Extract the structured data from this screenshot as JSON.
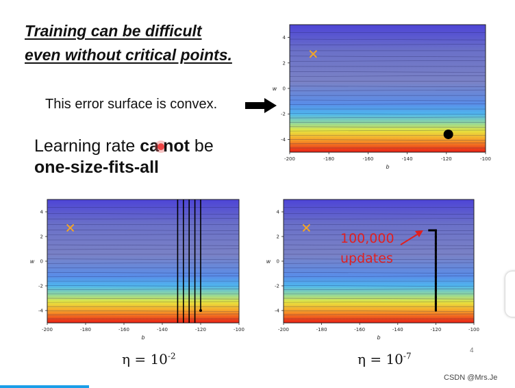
{
  "slide": {
    "title_line1": "Training can be difficult",
    "title_line2": "even without critical points.",
    "convex_text": "This error surface is convex.",
    "lr_part1": "Learning rate ",
    "lr_bold1": "ca",
    "lr_bold2": "not",
    "lr_part2": " be",
    "lr_line2": "one-size-fits-all",
    "eta_left_base": "η = 10",
    "eta_left_exp": "-2",
    "eta_right_base": "η = 10",
    "eta_right_exp": "-7",
    "page_number": "4",
    "annotation_count": "100,000",
    "annotation_word": "updates"
  },
  "watermark": "CSDN @Mrs.Je",
  "colors": {
    "marker": "#f5a623",
    "annotation": "#e02020",
    "accent_bar": "#1b9ee8"
  },
  "chart_data": [
    {
      "type": "heatmap",
      "id": "top",
      "xlabel": "b",
      "ylabel": "w",
      "xlim": [
        -200,
        -100
      ],
      "ylim": [
        -5,
        5
      ],
      "xticks": [
        "-200",
        "-180",
        "-160",
        "-140",
        "-120",
        "-100"
      ],
      "yticks": [
        "4",
        "2",
        "0",
        "-2",
        "-4"
      ],
      "start_marker": {
        "x": -188,
        "y": 2.7,
        "symbol": "x"
      },
      "minimum": {
        "x": -119,
        "y": -3.6
      }
    },
    {
      "type": "heatmap",
      "id": "bottom_left",
      "xlabel": "b",
      "ylabel": "w",
      "xlim": [
        -200,
        -100
      ],
      "ylim": [
        -5,
        5
      ],
      "xticks": [
        "-200",
        "-180",
        "-160",
        "-140",
        "-120",
        "-100"
      ],
      "yticks": [
        "4",
        "2",
        "0",
        "-2",
        "-4"
      ],
      "start_marker": {
        "x": -188,
        "y": 2.7,
        "symbol": "x"
      },
      "oscillation_b": [
        -132,
        -129,
        -126,
        -123,
        -120
      ],
      "path_end": {
        "x": -120,
        "y": -4
      }
    },
    {
      "type": "heatmap",
      "id": "bottom_right",
      "xlabel": "b",
      "ylabel": "w",
      "xlim": [
        -200,
        -100
      ],
      "ylim": [
        -5,
        5
      ],
      "xticks": [
        "-200",
        "-180",
        "-160",
        "-140",
        "-120",
        "-100"
      ],
      "yticks": [
        "4",
        "2",
        "0",
        "-2",
        "-4"
      ],
      "start_marker": {
        "x": -188,
        "y": 2.7,
        "symbol": "x"
      },
      "path": [
        [
          -124,
          2.5
        ],
        [
          -120,
          2.5
        ],
        [
          -120,
          -4
        ]
      ]
    }
  ]
}
